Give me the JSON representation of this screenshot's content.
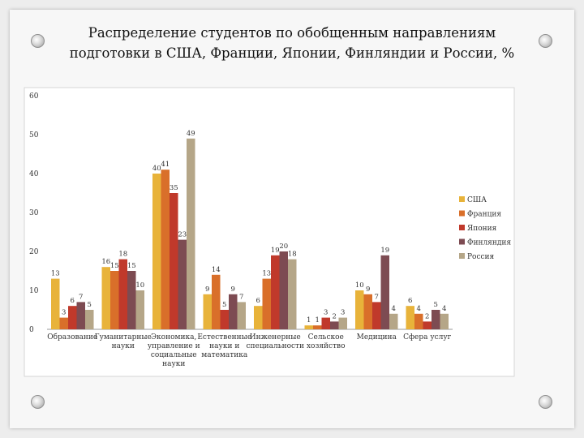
{
  "title": "Распределение студентов по обобщенным направлениям подготовки в США, Франции, Японии, Финляндии и России, %",
  "chart_data": {
    "type": "bar",
    "title": "Распределение студентов по обобщенным направлениям подготовки в США, Франции, Японии, Финляндии и России, %",
    "ylim": [
      0,
      60
    ],
    "yticks": [
      0,
      10,
      20,
      30,
      40,
      50,
      60
    ],
    "grid": false,
    "legend": "right",
    "categories": [
      [
        "Образование"
      ],
      [
        "Гуманитарные",
        "науки"
      ],
      [
        "Экономика,",
        "управление и",
        "социальные",
        "науки"
      ],
      [
        "Естественные",
        "науки и",
        "математика"
      ],
      [
        "Инженерные",
        "специальности"
      ],
      [
        "Сельское",
        "хозяйство"
      ],
      [
        "Медицина"
      ],
      [
        "Сфера услуг"
      ]
    ],
    "series": [
      {
        "name": "США",
        "color": "#e8b33a",
        "values": [
          13,
          16,
          40,
          9,
          6,
          1,
          10,
          6
        ]
      },
      {
        "name": "Франция",
        "color": "#d96f2a",
        "values": [
          3,
          15,
          41,
          14,
          13,
          1,
          9,
          4
        ]
      },
      {
        "name": "Япония",
        "color": "#c0392b",
        "values": [
          6,
          18,
          35,
          5,
          19,
          3,
          7,
          2
        ]
      },
      {
        "name": "Финляндия",
        "color": "#7d4b52",
        "values": [
          7,
          15,
          23,
          9,
          20,
          2,
          19,
          5
        ]
      },
      {
        "name": "Россия",
        "color": "#b5a688",
        "values": [
          5,
          10,
          49,
          7,
          18,
          3,
          4,
          4
        ]
      }
    ]
  }
}
